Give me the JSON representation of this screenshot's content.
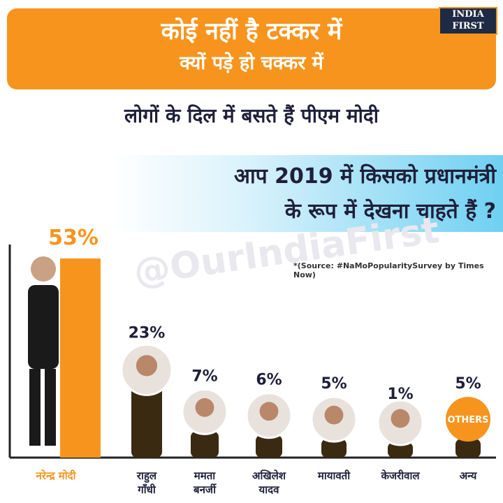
{
  "header": {
    "line1": "कोई नहीं है टक्कर में",
    "line2": "क्यों पड़े हो चक्कर में",
    "subtitle": "लोगों के दिल में बसते हैं पीएम मोदी",
    "question_line1": "आप 2019 में किसको प्रधानमंत्री",
    "question_line2": "के रूप में देखना चाहते हैं ?"
  },
  "logo": {
    "line1": "INDIA",
    "line2": "FIRST"
  },
  "watermark": "@OurIndiaFirst",
  "source": "*(Source: #NaMoPopularitySurvey by Times Now)",
  "colors": {
    "orange": "#f7941d",
    "dark_bar": "#3a2a12",
    "navy": "#1f2a44",
    "cyan": "#6fd0f2"
  },
  "others_badge": "OTHERS",
  "chart_data": {
    "type": "bar",
    "categories": [
      [
        "नरेन्द्र मोदी"
      ],
      [
        "राहुल",
        "गाँधी"
      ],
      [
        "ममता",
        "बनर्जी"
      ],
      [
        "अखिलेश",
        "यादव"
      ],
      [
        "मायावती"
      ],
      [
        "केजरीवाल"
      ],
      [
        "अन्य"
      ]
    ],
    "values": [
      53,
      23,
      7,
      6,
      5,
      1,
      5
    ],
    "value_labels": [
      "53%",
      "23%",
      "7%",
      "6%",
      "5%",
      "1%",
      "5%"
    ],
    "ylim": [
      0,
      53
    ]
  }
}
